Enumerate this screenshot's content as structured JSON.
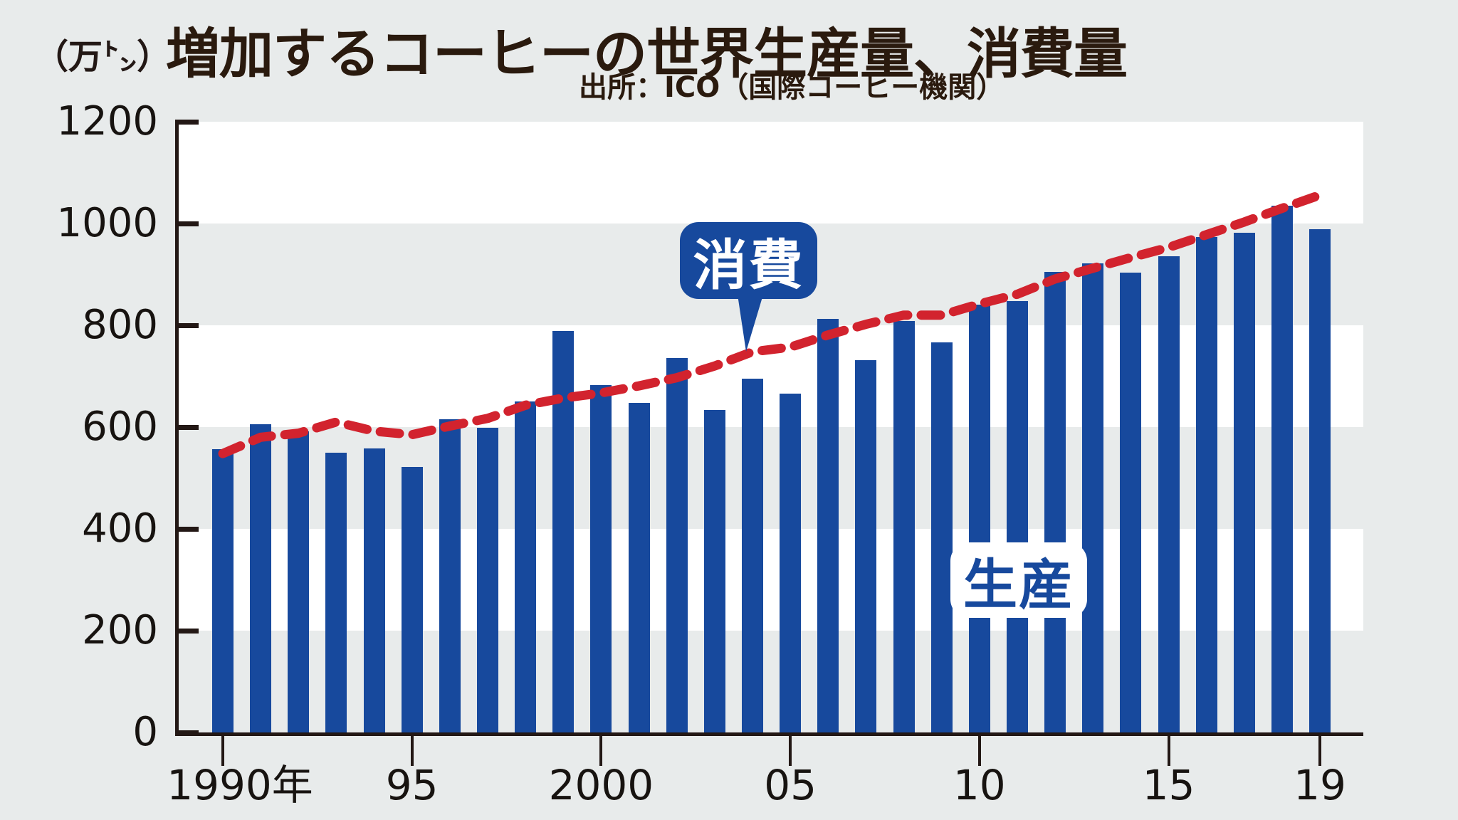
{
  "page": {
    "title": "増加するコーヒーの世界生産量、消費量",
    "source": "出所：ICO（国際コーヒー機関）",
    "unit_label": "（万㌧）"
  },
  "annotations": {
    "consumption_label": "消費",
    "production_label": "生産"
  },
  "colors": {
    "bar_blue": "#17499d",
    "line_red": "#d2232e",
    "background_gray": "#e8ebeb",
    "band_white": "#ffffff",
    "axis_dark": "#231815",
    "title_brown": "#2a1a0e"
  },
  "chart_data": {
    "type": "bar",
    "subtype": "bar-with-dashed-line-overlay",
    "title": "増加するコーヒーの世界生産量、消費量",
    "source": "出所：ICO（国際コーヒー機関）",
    "unit": "万トン",
    "x": [
      1990,
      1991,
      1992,
      1993,
      1994,
      1995,
      1996,
      1997,
      1998,
      1999,
      2000,
      2001,
      2002,
      2003,
      2004,
      2005,
      2006,
      2007,
      2008,
      2009,
      2010,
      2011,
      2012,
      2013,
      2014,
      2015,
      2016,
      2017,
      2018,
      2019
    ],
    "series": [
      {
        "name": "生産",
        "type": "bar",
        "color": "#17499d",
        "values": [
          556,
          606,
          592,
          550,
          558,
          522,
          616,
          599,
          650,
          789,
          683,
          647,
          736,
          633,
          695,
          666,
          812,
          732,
          809,
          767,
          840,
          848,
          905,
          922,
          903,
          936,
          974,
          982,
          1035,
          989
        ]
      },
      {
        "name": "消費",
        "type": "line",
        "style": "dashed",
        "color": "#d2232e",
        "values": [
          548,
          580,
          588,
          610,
          592,
          585,
          602,
          617,
          643,
          657,
          667,
          681,
          697,
          720,
          748,
          757,
          781,
          802,
          820,
          820,
          842,
          861,
          891,
          912,
          933,
          953,
          978,
          1003,
          1030,
          1056
        ]
      }
    ],
    "ylim": [
      0,
      1200
    ],
    "y_ticks": [
      0,
      200,
      400,
      600,
      800,
      1000,
      1200
    ],
    "x_tick_labels": [
      {
        "year": 1990,
        "label": "1990年"
      },
      {
        "year": 1995,
        "label": "95"
      },
      {
        "year": 2000,
        "label": "2000"
      },
      {
        "year": 2005,
        "label": "05"
      },
      {
        "year": 2010,
        "label": "10"
      },
      {
        "year": 2015,
        "label": "15"
      },
      {
        "year": 2019,
        "label": "19"
      }
    ],
    "grid": "alternating horizontal white/gray bands every 200 units",
    "legend_position": "inline callouts on chart"
  }
}
